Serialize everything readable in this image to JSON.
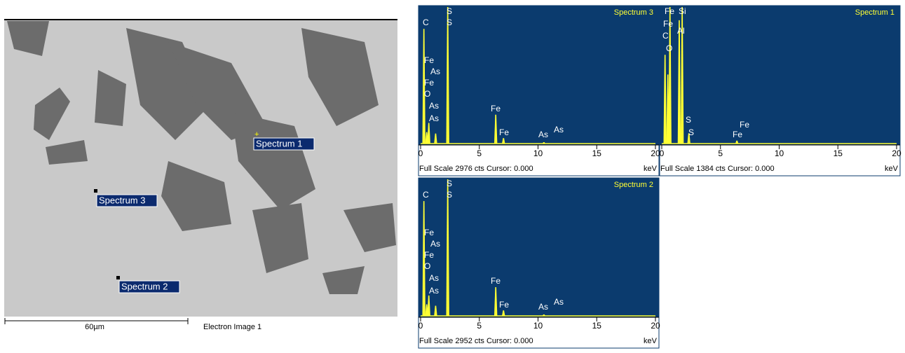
{
  "electron_image": {
    "markers": [
      "Spectrum 1",
      "Spectrum 3",
      "Spectrum 2"
    ],
    "scale_bar": "60µm",
    "caption": "Electron Image 1"
  },
  "chart_data": [
    {
      "type": "spectrum",
      "title": "Spectrum 3",
      "footer": "Full Scale 2976 cts Cursor: 0.000",
      "x_unit": "keV",
      "xlim": [
        0,
        20
      ],
      "xticks": [
        0,
        5,
        10,
        15,
        20
      ],
      "ylim": [
        0,
        2976
      ],
      "color": "#ffff33",
      "element_labels": [
        "C",
        "S",
        "S",
        "Fe",
        "As",
        "Fe",
        "O",
        "As",
        "As",
        "Fe",
        "Fe",
        "As",
        "As"
      ],
      "x": [
        0.28,
        0.52,
        0.7,
        1.28,
        2.31,
        6.4,
        7.06,
        10.5
      ],
      "values": [
        2500,
        250,
        450,
        220,
        2976,
        630,
        120,
        30
      ]
    },
    {
      "type": "spectrum",
      "title": "Spectrum 1",
      "footer": "Full Scale 1384 cts Cursor: 0.000",
      "x_unit": "keV",
      "xlim": [
        0,
        20
      ],
      "xticks": [
        0,
        5,
        10,
        15,
        20
      ],
      "ylim": [
        0,
        1384
      ],
      "color": "#ffff33",
      "element_labels": [
        "Fe",
        "Fe",
        "Si",
        "C",
        "Al",
        "O",
        "S",
        "S",
        "Fe",
        "Fe"
      ],
      "x": [
        0.28,
        0.52,
        0.7,
        1.49,
        1.74,
        2.31,
        6.4
      ],
      "values": [
        900,
        700,
        1384,
        1250,
        1384,
        105,
        30
      ]
    },
    {
      "type": "spectrum",
      "title": "Spectrum 2",
      "footer": "Full Scale 2952 cts Cursor: 0.000",
      "x_unit": "keV",
      "xlim": [
        0,
        20
      ],
      "xticks": [
        0,
        5,
        10,
        15,
        20
      ],
      "ylim": [
        0,
        2952
      ],
      "color": "#ffff33",
      "element_labels": [
        "C",
        "S",
        "S",
        "Fe",
        "As",
        "Fe",
        "O",
        "As",
        "As",
        "Fe",
        "Fe",
        "As",
        "As"
      ],
      "x": [
        0.28,
        0.52,
        0.7,
        1.28,
        2.31,
        6.4,
        7.06,
        10.5
      ],
      "values": [
        2480,
        250,
        440,
        220,
        2952,
        620,
        120,
        30
      ]
    }
  ]
}
